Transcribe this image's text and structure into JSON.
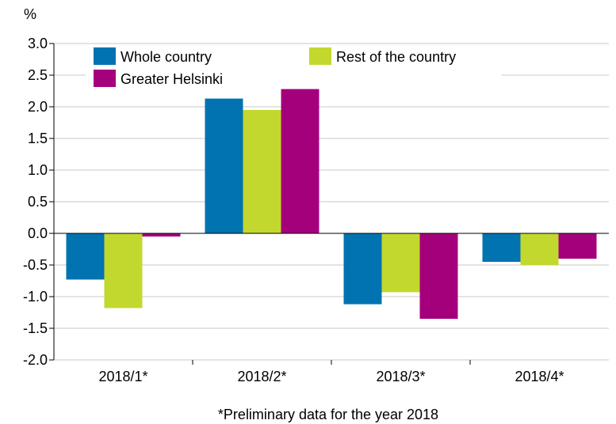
{
  "chart_data": {
    "type": "bar",
    "ylabel": "%",
    "ylim": [
      -2.0,
      3.0
    ],
    "yticks": [
      "3.0",
      "2.5",
      "2.0",
      "1.5",
      "1.0",
      "0.5",
      "0.0",
      "-0.5",
      "-1.0",
      "-1.5",
      "-2.0"
    ],
    "categories": [
      "2018/1*",
      "2018/2*",
      "2018/3*",
      "2018/4*"
    ],
    "series": [
      {
        "name": "Whole country",
        "color": "#0073b0",
        "values": [
          -0.73,
          2.13,
          -1.12,
          -0.45
        ]
      },
      {
        "name": "Rest of the country",
        "color": "#c3d82e",
        "values": [
          -1.18,
          1.95,
          -0.93,
          -0.5
        ]
      },
      {
        "name": "Greater Helsinki",
        "color": "#a4007c",
        "values": [
          -0.05,
          2.28,
          -1.35,
          -0.4
        ]
      }
    ],
    "grid": true,
    "legend_position": "top-left",
    "footnote": "*Preliminary data for the year 2018"
  }
}
